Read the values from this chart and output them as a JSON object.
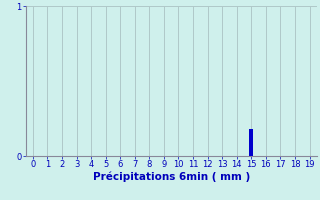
{
  "title": "",
  "xlabel": "Précipitations 6min ( mm )",
  "ylabel": "",
  "xlim": [
    -0.5,
    19.5
  ],
  "ylim": [
    0,
    1
  ],
  "yticks": [
    0,
    1
  ],
  "xticks": [
    0,
    1,
    2,
    3,
    4,
    5,
    6,
    7,
    8,
    9,
    10,
    11,
    12,
    13,
    14,
    15,
    16,
    17,
    18,
    19
  ],
  "bar_x": [
    15
  ],
  "bar_heights": [
    0.18
  ],
  "bar_color": "#0000cc",
  "bar_width": 0.25,
  "background_color": "#cff0ec",
  "grid_color": "#b0c8c8",
  "axis_color": "#888899",
  "tick_color": "#0000bb",
  "label_color": "#0000bb",
  "xlabel_fontsize": 7.5,
  "tick_fontsize": 6
}
